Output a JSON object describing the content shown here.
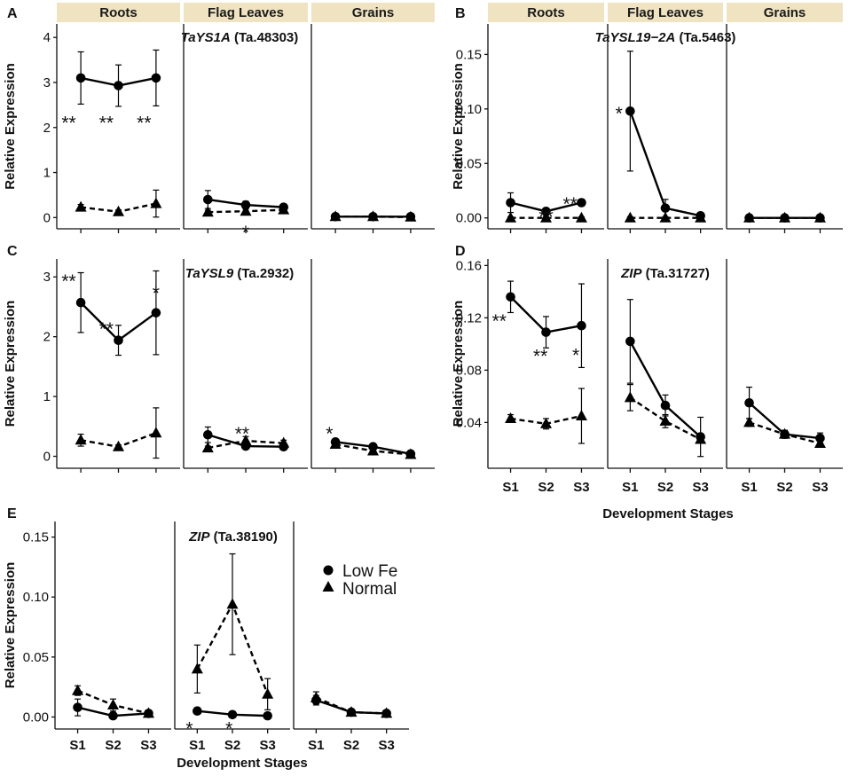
{
  "figure": {
    "x_label": "Development Stages",
    "y_label": "Relative Expression",
    "stages": [
      "S1",
      "S2",
      "S3"
    ],
    "tissues": [
      "Roots",
      "Flag Leaves",
      "Grains"
    ],
    "legend": {
      "low_fe": {
        "label": "Low Fe",
        "marker": "circle-marker-icon",
        "line": "solid"
      },
      "normal": {
        "label": "Normal",
        "marker": "triangle-marker-icon",
        "line": "dashed"
      }
    },
    "colors": {
      "strip": "#efe3c1",
      "line": "#000000"
    }
  },
  "chart_data": [
    {
      "panel": "A",
      "type": "line",
      "gene": "TaYS1A",
      "gene_id": "(Ta.48303)",
      "ylim": [
        -0.25,
        4.3
      ],
      "yticks": [
        0,
        1,
        2,
        3,
        4
      ],
      "ytick_labels": [
        "0",
        "1",
        "2",
        "3",
        "4"
      ],
      "show_strips": true,
      "show_x_ticks": false,
      "series": [
        {
          "name": "Low Fe",
          "values": [
            [
              3.1,
              2.93,
              3.1
            ],
            [
              0.4,
              0.28,
              0.23
            ],
            [
              0.02,
              0.02,
              0.02
            ]
          ],
          "errors": [
            [
              0.58,
              0.46,
              0.62
            ],
            [
              0.2,
              0.08,
              0.04
            ],
            [
              0.02,
              0.02,
              0.02
            ]
          ]
        },
        {
          "name": "Normal",
          "values": [
            [
              0.23,
              0.13,
              0.31
            ],
            [
              0.12,
              0.14,
              0.17
            ],
            [
              0.02,
              0.02,
              0.01
            ]
          ],
          "errors": [
            [
              0.06,
              0.04,
              0.3
            ],
            [
              0.04,
              0.05,
              0.04
            ],
            [
              0.01,
              0.01,
              0.01
            ]
          ]
        }
      ],
      "annotations": [
        {
          "text": "**",
          "tissue": 0,
          "stage": 0,
          "y": 2.2,
          "dx": -1
        },
        {
          "text": "**",
          "tissue": 0,
          "stage": 1,
          "y": 2.2,
          "dx": -1
        },
        {
          "text": "**",
          "tissue": 0,
          "stage": 2,
          "y": 2.2,
          "dx": -1
        },
        {
          "text": "*",
          "tissue": 1,
          "stage": 1,
          "y": -0.23,
          "dx": 0
        }
      ]
    },
    {
      "panel": "B",
      "type": "line",
      "gene": "TaYSL19−2A",
      "gene_id": "(Ta.5463)",
      "ylim": [
        -0.01,
        0.178
      ],
      "yticks": [
        0,
        0.05,
        0.1,
        0.15
      ],
      "ytick_labels": [
        "0.00",
        "0.05",
        "0.10",
        "0.15"
      ],
      "show_strips": true,
      "show_x_ticks": false,
      "series": [
        {
          "name": "Low Fe",
          "values": [
            [
              0.014,
              0.006,
              0.014
            ],
            [
              0.098,
              0.009,
              0.002
            ],
            [
              0.0,
              0.0,
              0.0
            ]
          ],
          "errors": [
            [
              0.009,
              0.003,
              0.003
            ],
            [
              0.055,
              0.008,
              0.002
            ],
            [
              0.001,
              0.001,
              0.001
            ]
          ]
        },
        {
          "name": "Normal",
          "values": [
            [
              0.0,
              0.0,
              0.0
            ],
            [
              0.0,
              0.0,
              0.0
            ],
            [
              0.0,
              0.0,
              0.0
            ]
          ],
          "errors": [
            [
              0.001,
              0.001,
              0.001
            ],
            [
              0.001,
              0.001,
              0.001
            ],
            [
              0.001,
              0.001,
              0.001
            ]
          ]
        }
      ],
      "annotations": [
        {
          "text": "**",
          "tissue": 0,
          "stage": 1,
          "y": 0.005,
          "dx": 0
        },
        {
          "text": "**",
          "tissue": 0,
          "stage": 2,
          "y": 0.017,
          "dx": -1
        },
        {
          "text": "*",
          "tissue": 1,
          "stage": 0,
          "y": 0.1,
          "dx": -1
        }
      ]
    },
    {
      "panel": "C",
      "type": "line",
      "gene": "TaYSL9",
      "gene_id": "(Ta.2932)",
      "ylim": [
        -0.2,
        3.3
      ],
      "yticks": [
        0,
        1,
        2,
        3
      ],
      "ytick_labels": [
        "0",
        "1",
        "2",
        "3"
      ],
      "show_strips": false,
      "show_x_ticks": false,
      "series": [
        {
          "name": "Low Fe",
          "values": [
            [
              2.57,
              1.94,
              2.4
            ],
            [
              0.36,
              0.17,
              0.16
            ],
            [
              0.24,
              0.16,
              0.04
            ]
          ],
          "errors": [
            [
              0.5,
              0.25,
              0.7
            ],
            [
              0.13,
              0.04,
              0.03
            ],
            [
              0.03,
              0.03,
              0.02
            ]
          ]
        },
        {
          "name": "Normal",
          "values": [
            [
              0.27,
              0.16,
              0.39
            ],
            [
              0.14,
              0.26,
              0.22
            ],
            [
              0.2,
              0.09,
              0.03
            ]
          ],
          "errors": [
            [
              0.1,
              0.03,
              0.42
            ],
            [
              0.03,
              0.07,
              0.05
            ],
            [
              0.03,
              0.03,
              0.02
            ]
          ]
        }
      ],
      "annotations": [
        {
          "text": "**",
          "tissue": 0,
          "stage": 0,
          "y": 3.0,
          "dx": -1
        },
        {
          "text": "**",
          "tissue": 0,
          "stage": 1,
          "y": 2.2,
          "dx": -1
        },
        {
          "text": "*",
          "tissue": 0,
          "stage": 2,
          "y": 2.8,
          "dx": 0
        },
        {
          "text": "**",
          "tissue": 1,
          "stage": 1,
          "y": 0.45,
          "dx": -0.3
        },
        {
          "text": "*",
          "tissue": 2,
          "stage": 0,
          "y": 0.45,
          "dx": -0.5
        }
      ]
    },
    {
      "panel": "D",
      "type": "line",
      "gene": "ZIP",
      "gene_id": "(Ta.31727)",
      "ylim": [
        0.005,
        0.165
      ],
      "yticks": [
        0.04,
        0.08,
        0.12,
        0.16
      ],
      "ytick_labels": [
        "0.04",
        "0.08",
        "0.12",
        "0.16"
      ],
      "show_strips": false,
      "show_x_ticks": true,
      "series": [
        {
          "name": "Low Fe",
          "values": [
            [
              0.136,
              0.109,
              0.114
            ],
            [
              0.102,
              0.053,
              0.029
            ],
            [
              0.055,
              0.031,
              0.028
            ]
          ],
          "errors": [
            [
              0.012,
              0.012,
              0.032
            ],
            [
              0.032,
              0.008,
              0.015
            ],
            [
              0.012,
              0.003,
              0.004
            ]
          ]
        },
        {
          "name": "Normal",
          "values": [
            [
              0.043,
              0.039,
              0.045
            ],
            [
              0.059,
              0.041,
              0.027
            ],
            [
              0.04,
              0.031,
              0.024
            ]
          ],
          "errors": [
            [
              0.003,
              0.004,
              0.021
            ],
            [
              0.01,
              0.005,
              0.002
            ],
            [
              0.003,
              0.003,
              0.002
            ]
          ]
        }
      ],
      "annotations": [
        {
          "text": "**",
          "tissue": 0,
          "stage": 0,
          "y": 0.121,
          "dx": -1
        },
        {
          "text": "**",
          "tissue": 0,
          "stage": 1,
          "y": 0.094,
          "dx": -0.5
        },
        {
          "text": "*",
          "tissue": 0,
          "stage": 2,
          "y": 0.095,
          "dx": -0.5
        }
      ]
    },
    {
      "panel": "E",
      "type": "line",
      "gene": "ZIP",
      "gene_id": "(Ta.38190)",
      "ylim": [
        -0.01,
        0.163
      ],
      "yticks": [
        0,
        0.05,
        0.1,
        0.15
      ],
      "ytick_labels": [
        "0.00",
        "0.05",
        "0.10",
        "0.15"
      ],
      "show_strips": false,
      "show_x_ticks": true,
      "series": [
        {
          "name": "Low Fe",
          "values": [
            [
              0.008,
              0.001,
              0.003
            ],
            [
              0.005,
              0.002,
              0.001
            ],
            [
              0.014,
              0.004,
              0.003
            ]
          ],
          "errors": [
            [
              0.007,
              0.001,
              0.001
            ],
            [
              0.001,
              0.001,
              0.001
            ],
            [
              0.004,
              0.001,
              0.001
            ]
          ]
        },
        {
          "name": "Normal",
          "values": [
            [
              0.022,
              0.01,
              0.003
            ],
            [
              0.04,
              0.094,
              0.019
            ],
            [
              0.016,
              0.004,
              0.003
            ]
          ],
          "errors": [
            [
              0.004,
              0.005,
              0.001
            ],
            [
              0.02,
              0.042,
              0.013
            ],
            [
              0.005,
              0.001,
              0.001
            ]
          ]
        }
      ],
      "annotations": [
        {
          "text": "*",
          "tissue": 1,
          "stage": 0,
          "y": -0.006,
          "dx": -0.7
        },
        {
          "text": "*",
          "tissue": 1,
          "stage": 1,
          "y": -0.006,
          "dx": -0.3
        }
      ]
    }
  ]
}
